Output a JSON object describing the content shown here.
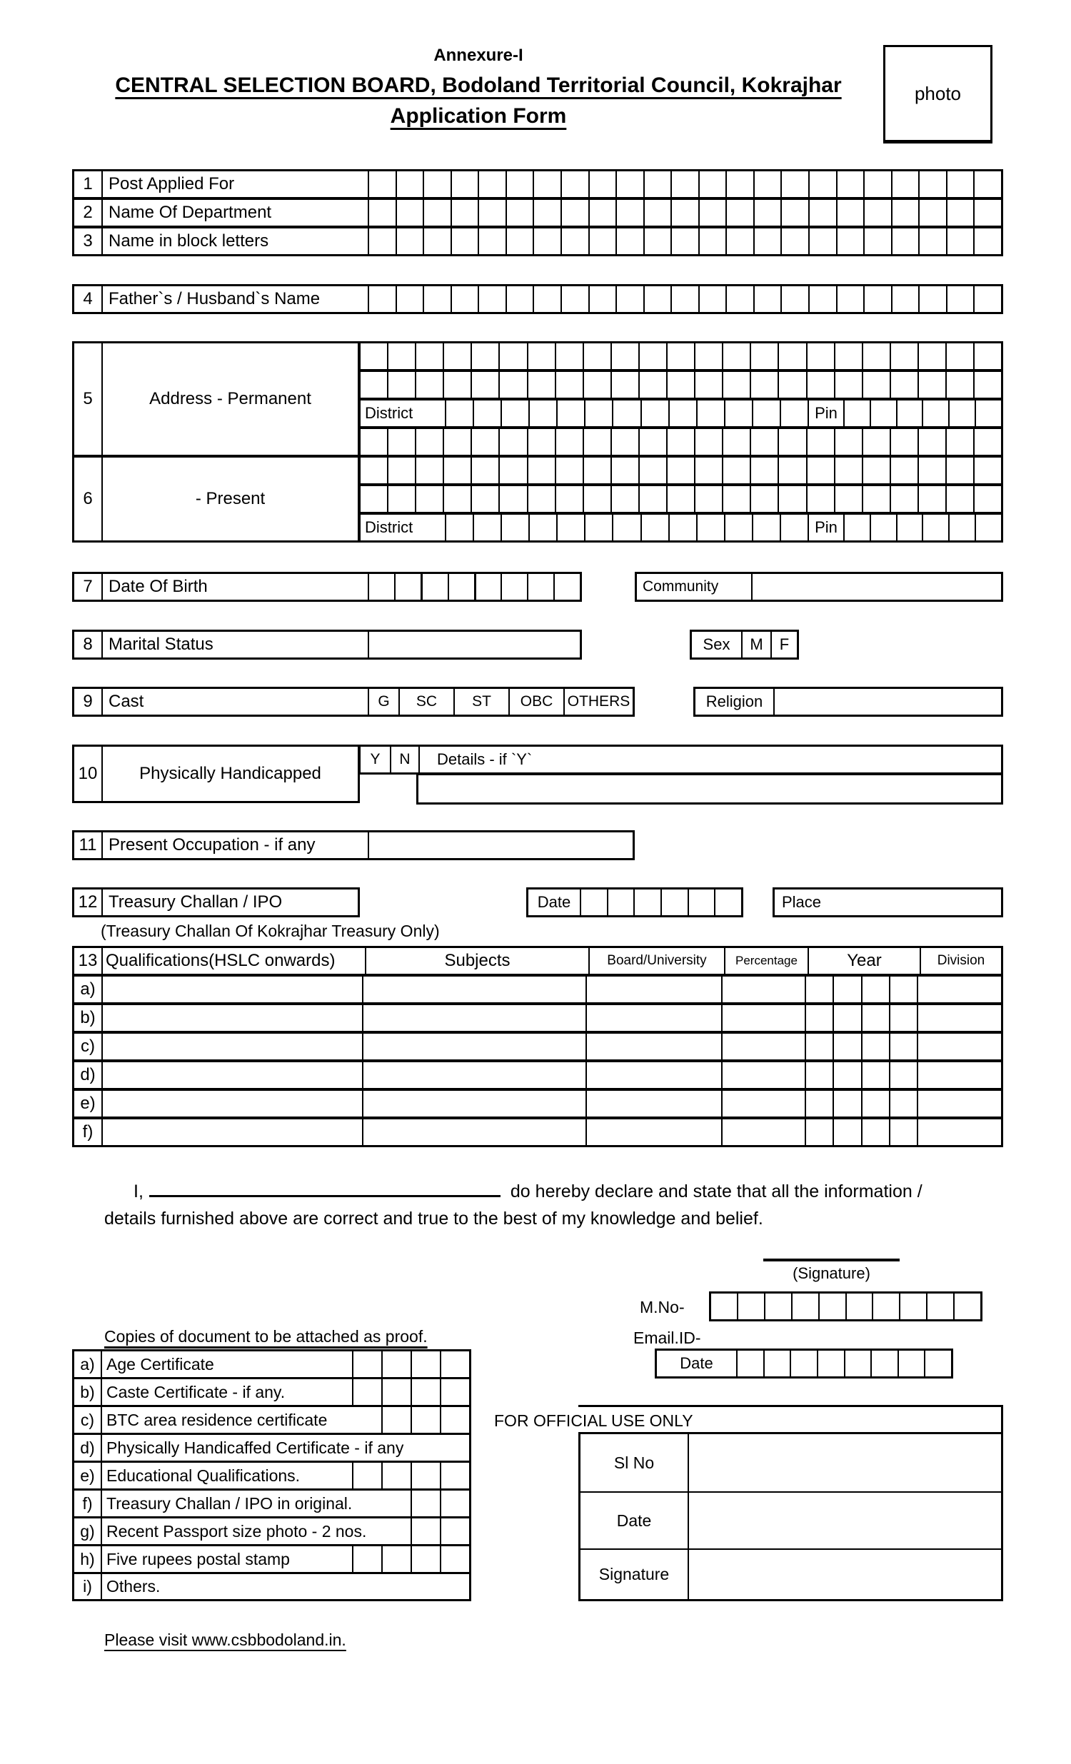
{
  "page": {
    "paper": "#ffffff",
    "ink": "#000000"
  },
  "header": {
    "annexure": "Annexure-I",
    "title": "CENTRAL SELECTION BOARD, Bodoland Territorial Council, Kokrajhar",
    "subtitle": "Application Form",
    "photo_label": "photo"
  },
  "rows": {
    "r1": {
      "no": "1",
      "label": "Post Applied For"
    },
    "r2": {
      "no": "2",
      "label": "Name Of Department"
    },
    "r3": {
      "no": "3",
      "label": "Name in block letters"
    },
    "r4": {
      "no": "4",
      "label": "Father`s / Husband`s Name"
    },
    "r5": {
      "no": "5",
      "label": "Address - Permanent",
      "district": "District",
      "pin": "Pin"
    },
    "r6": {
      "no": "6",
      "label": "- Present",
      "district": "District",
      "pin": "Pin"
    },
    "r7": {
      "no": "7",
      "label": "Date Of Birth",
      "community": "Community"
    },
    "r8": {
      "no": "8",
      "label": "Marital Status",
      "sex": "Sex",
      "male": "M",
      "female": "F"
    },
    "r9": {
      "no": "9",
      "label": "Cast",
      "opt_g": "G",
      "opt_sc": "SC",
      "opt_st": "ST",
      "opt_obc": "OBC",
      "opt_others": "OTHERS",
      "religion": "Religion"
    },
    "r10": {
      "no": "10",
      "label": "Physically Handicapped",
      "yes": "Y",
      "no_opt": "N",
      "details": "Details - if `Y`"
    },
    "r11": {
      "no": "11",
      "label": "Present Occupation - if any"
    },
    "r12": {
      "no": "12",
      "label": "Treasury Challan / IPO",
      "date": "Date",
      "place": "Place",
      "note": "(Treasury Challan Of Kokrajhar Treasury Only)"
    }
  },
  "qualifications": {
    "no": "13",
    "headers": {
      "qualification": "Qualifications(HSLC onwards)",
      "subjects": "Subjects",
      "board": "Board/University",
      "percentage": "Percentage",
      "year": "Year",
      "division": "Division"
    },
    "row_letters": [
      "a)",
      "b)",
      "c)",
      "d)",
      "e)",
      "f)"
    ]
  },
  "declaration": {
    "line1_prefix": "I,",
    "line1_suffix": "do hereby declare and state that all the information /",
    "line2": "details furnished above are correct and true to the best of my knowledge and belief."
  },
  "signature": {
    "caption": "(Signature)",
    "mno_label": "M.No-",
    "email_label": "Email.ID-",
    "date_label": "Date"
  },
  "documents": {
    "heading": "Copies of document to be attached as proof.",
    "items": [
      {
        "no": "a)",
        "label": "Age Certificate"
      },
      {
        "no": "b)",
        "label": "Caste Certificate - if any."
      },
      {
        "no": "c)",
        "label": "BTC area residence certificate"
      },
      {
        "no": "d)",
        "label": "Physically Handicaffed Certificate - if any"
      },
      {
        "no": "e)",
        "label": "Educational Qualifications."
      },
      {
        "no": "f)",
        "label": "Treasury Challan / IPO in original."
      },
      {
        "no": "g)",
        "label": "Recent Passport size photo - 2 nos."
      },
      {
        "no": "h)",
        "label": "Five rupees postal stamp"
      },
      {
        "no": "i)",
        "label": "Others."
      }
    ]
  },
  "official": {
    "title": "FOR OFFICIAL USE ONLY",
    "sl_no": "Sl No",
    "date": "Date",
    "signature": "Signature"
  },
  "footer": {
    "note": "Please visit www.csbbodoland.in."
  }
}
